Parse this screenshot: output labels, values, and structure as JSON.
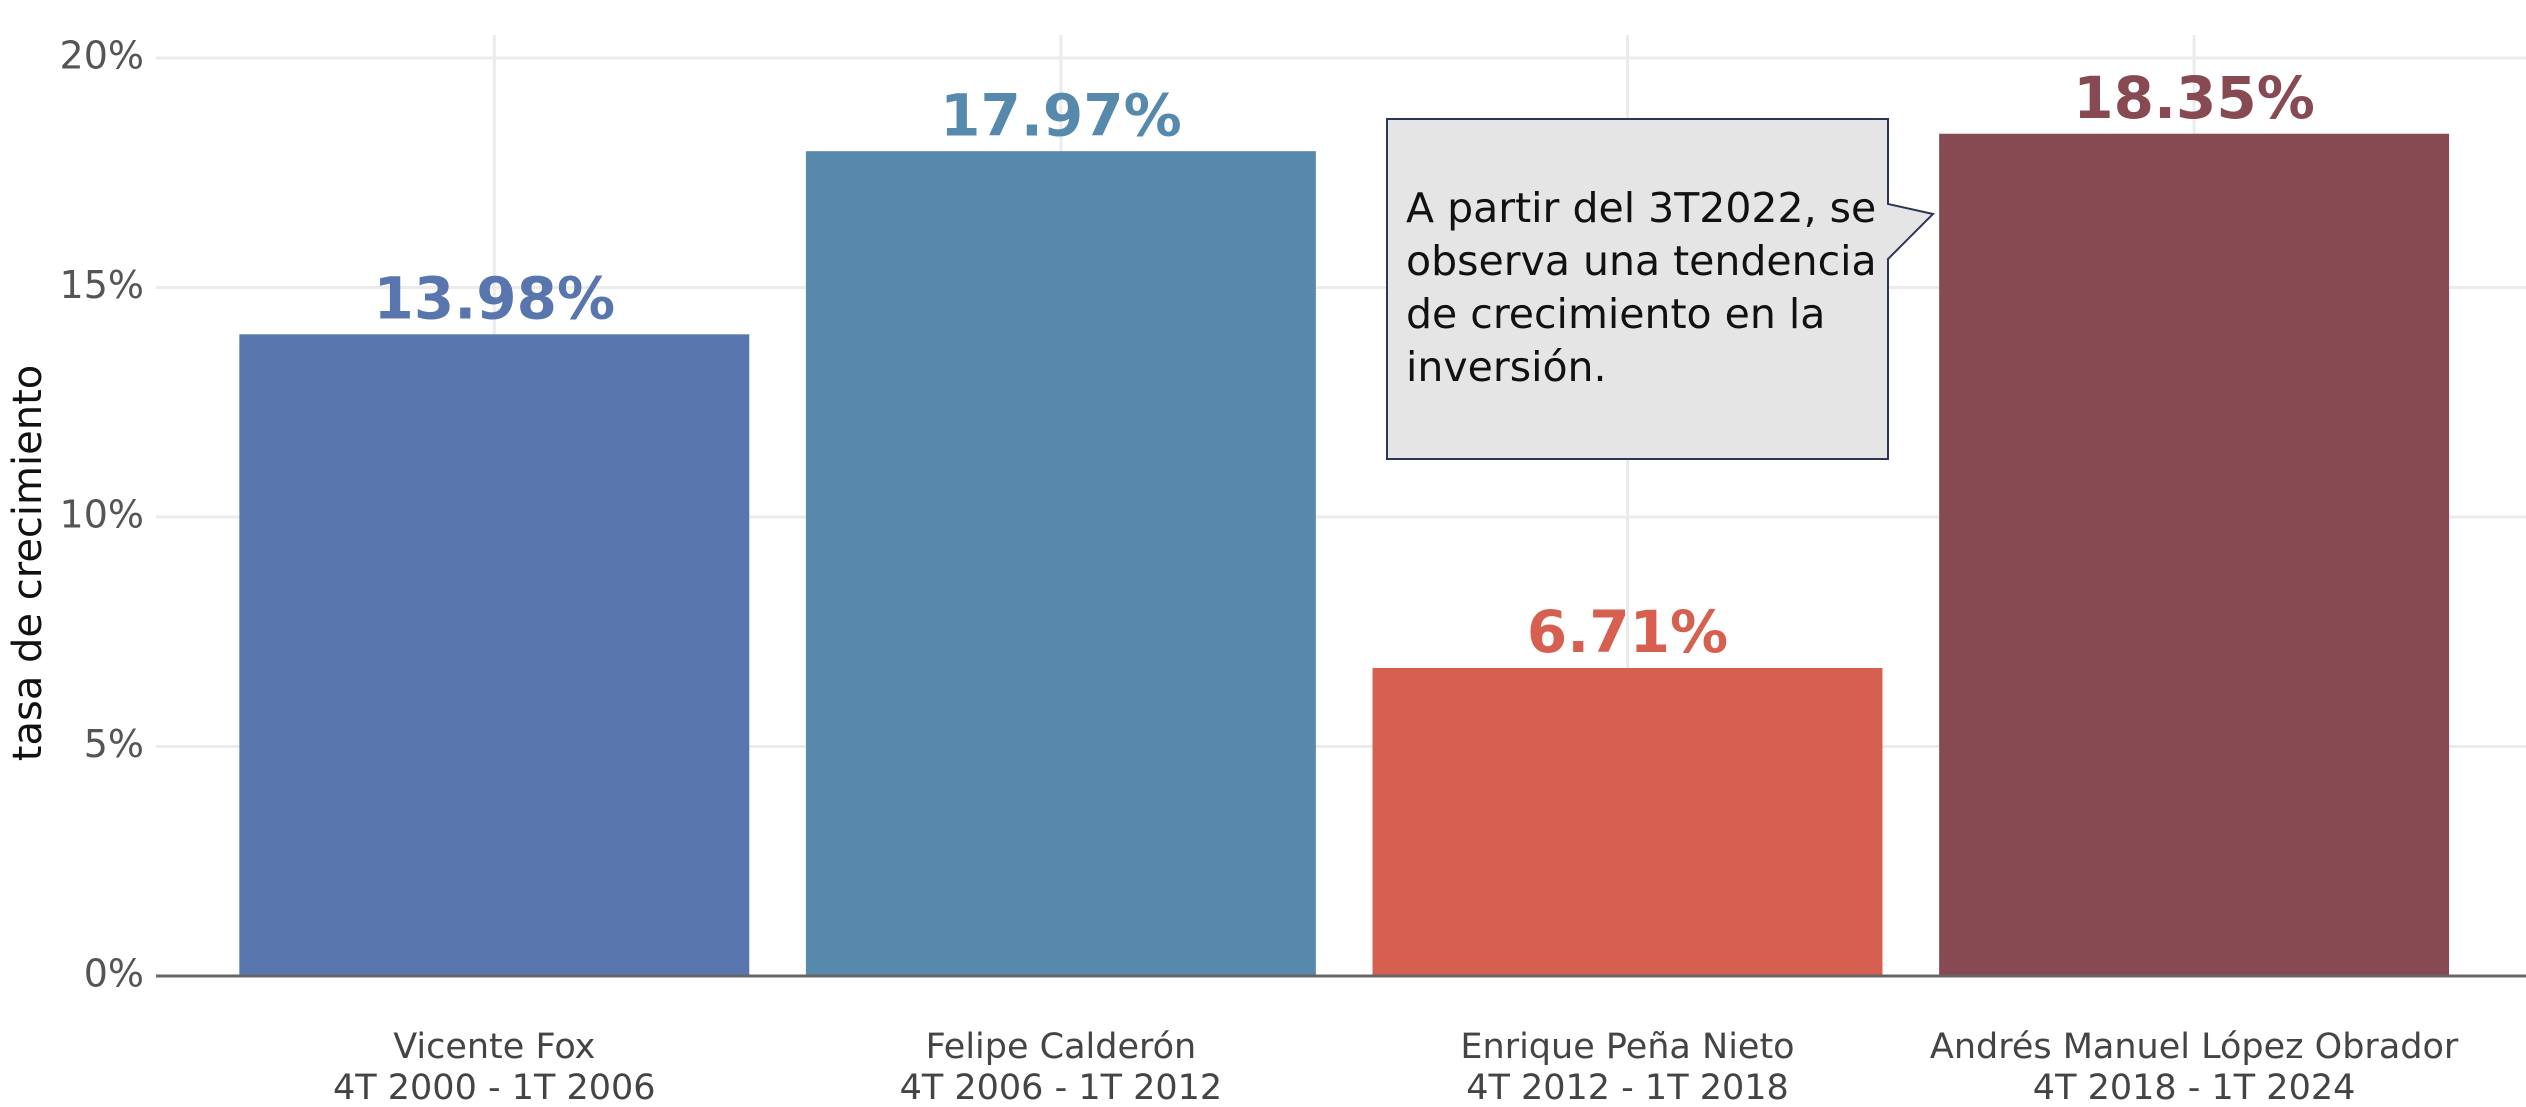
{
  "chart_data": {
    "type": "bar",
    "y_label": "tasa de crecimiento",
    "categories": [
      "Vicente Fox",
      "Felipe Calderón",
      "Enrique Peña Nieto",
      "Andrés Manuel López Obrador"
    ],
    "periods": [
      "4T 2000 - 1T 2006",
      "4T 2006 - 1T 2012",
      "4T 2012 - 1T 2018",
      "4T 2018 - 1T 2024"
    ],
    "values": [
      13.98,
      17.97,
      6.71,
      18.35
    ],
    "value_labels": [
      "13.98%",
      "17.97%",
      "6.71%",
      "18.35%"
    ],
    "colors": [
      "#5876ad",
      "#5789ad",
      "#d65f4f",
      "#874a52"
    ],
    "ylim": [
      0,
      20.5
    ],
    "yticks": [
      {
        "value": 0,
        "label": "0%"
      },
      {
        "value": 5,
        "label": "5%"
      },
      {
        "value": 10,
        "label": "10%"
      },
      {
        "value": 15,
        "label": "15%"
      },
      {
        "value": 20,
        "label": "20%"
      }
    ],
    "grid": true,
    "annotation": {
      "lines": [
        "A partir del 3T2022, se",
        "observa una tendencia",
        "de crecimiento en la",
        "inversión."
      ]
    }
  }
}
